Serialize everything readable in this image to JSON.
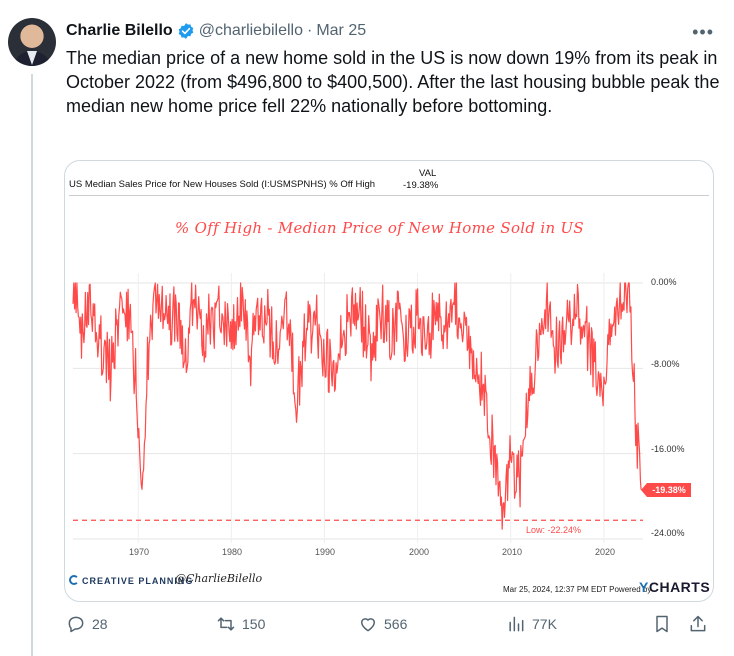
{
  "tweet": {
    "author_name": "Charlie Bilello",
    "handle": "@charliebilello",
    "separator": "·",
    "date": "Mar 25",
    "more_icon": "more-horizontal-icon",
    "text": "The median price of a new home sold in the US is now down 19% from its peak in October 2022 (from $496,800 to $400,500). After the last housing bubble peak the median new home price fell 22% nationally before bottoming."
  },
  "chart_card": {
    "header_text": "US Median Sales Price for New Houses Sold (I:USMSPNHS) % Off High",
    "val_label": "VAL",
    "val_value": "-19.38%",
    "brand_text": "CREATIVE PLANNING",
    "signature": "@CharlieBilello",
    "footer_note": "Mar 25, 2024, 12:37 PM EDT Powered by",
    "ycharts_y": "Y",
    "ycharts_rest": "CHARTS",
    "colors": {
      "series": "#ff4a4a",
      "brand": "#1f6fb3"
    }
  },
  "chart_data": {
    "type": "line",
    "title": "% Off High - Median Price of New Home Sold in US",
    "series_name": "US Median Sales Price for New Houses Sold (I:USMSPNHS) % Off High",
    "x_ticks": [
      "1970",
      "1980",
      "1990",
      "2000",
      "2010",
      "2020"
    ],
    "y_ticks": [
      "0.00%",
      "-8.00%",
      "-16.00%",
      "-24.00%"
    ],
    "ylim": [
      -24,
      0
    ],
    "xlim": [
      1963,
      2024.2
    ],
    "low_label": "Low: -22.24%",
    "low_value": -22.24,
    "current_label": "-19.38%",
    "current_value": -19.38,
    "points": [
      [
        1963.0,
        0
      ],
      [
        1964.0,
        -4
      ],
      [
        1965.0,
        -2
      ],
      [
        1966.0,
        -5
      ],
      [
        1967.0,
        -8
      ],
      [
        1968.0,
        -2
      ],
      [
        1969.0,
        -3
      ],
      [
        1969.8,
        -9
      ],
      [
        1970.5,
        -17.5
      ],
      [
        1971.0,
        -6
      ],
      [
        1972.0,
        -1
      ],
      [
        1973.0,
        -3
      ],
      [
        1974.0,
        -2
      ],
      [
        1975.0,
        -6
      ],
      [
        1976.0,
        -1
      ],
      [
        1977.0,
        -4
      ],
      [
        1978.0,
        -3
      ],
      [
        1979.0,
        -2
      ],
      [
        1980.0,
        -5
      ],
      [
        1981.0,
        -1
      ],
      [
        1982.0,
        -7
      ],
      [
        1983.0,
        -2
      ],
      [
        1984.0,
        -3
      ],
      [
        1985.0,
        -6
      ],
      [
        1986.0,
        -2
      ],
      [
        1987.0,
        -10
      ],
      [
        1988.0,
        -4
      ],
      [
        1989.0,
        -3
      ],
      [
        1990.0,
        -6
      ],
      [
        1991.0,
        -8
      ],
      [
        1992.0,
        -4
      ],
      [
        1993.0,
        -2
      ],
      [
        1994.0,
        -3
      ],
      [
        1995.0,
        -6
      ],
      [
        1996.0,
        -2
      ],
      [
        1997.0,
        -4
      ],
      [
        1998.0,
        -3
      ],
      [
        1999.0,
        -5
      ],
      [
        2000.0,
        -2
      ],
      [
        2001.0,
        -6
      ],
      [
        2002.0,
        -1
      ],
      [
        2003.0,
        -4
      ],
      [
        2004.0,
        -2
      ],
      [
        2005.0,
        -3
      ],
      [
        2006.0,
        -6
      ],
      [
        2007.0,
        -9
      ],
      [
        2008.0,
        -14
      ],
      [
        2009.0,
        -22.24
      ],
      [
        2010.0,
        -16
      ],
      [
        2011.0,
        -18
      ],
      [
        2012.0,
        -10
      ],
      [
        2013.0,
        -4
      ],
      [
        2014.0,
        -2
      ],
      [
        2015.0,
        -6
      ],
      [
        2016.0,
        -3
      ],
      [
        2017.0,
        -2
      ],
      [
        2018.0,
        -4
      ],
      [
        2019.0,
        -7
      ],
      [
        2020.0,
        -10
      ],
      [
        2021.0,
        -2
      ],
      [
        2022.0,
        0
      ],
      [
        2022.8,
        0
      ],
      [
        2023.0,
        -6
      ],
      [
        2023.5,
        -13
      ],
      [
        2024.0,
        -19.38
      ]
    ]
  },
  "actions": {
    "reply_count": "28",
    "retweet_count": "150",
    "like_count": "566",
    "views_count": "77K"
  }
}
